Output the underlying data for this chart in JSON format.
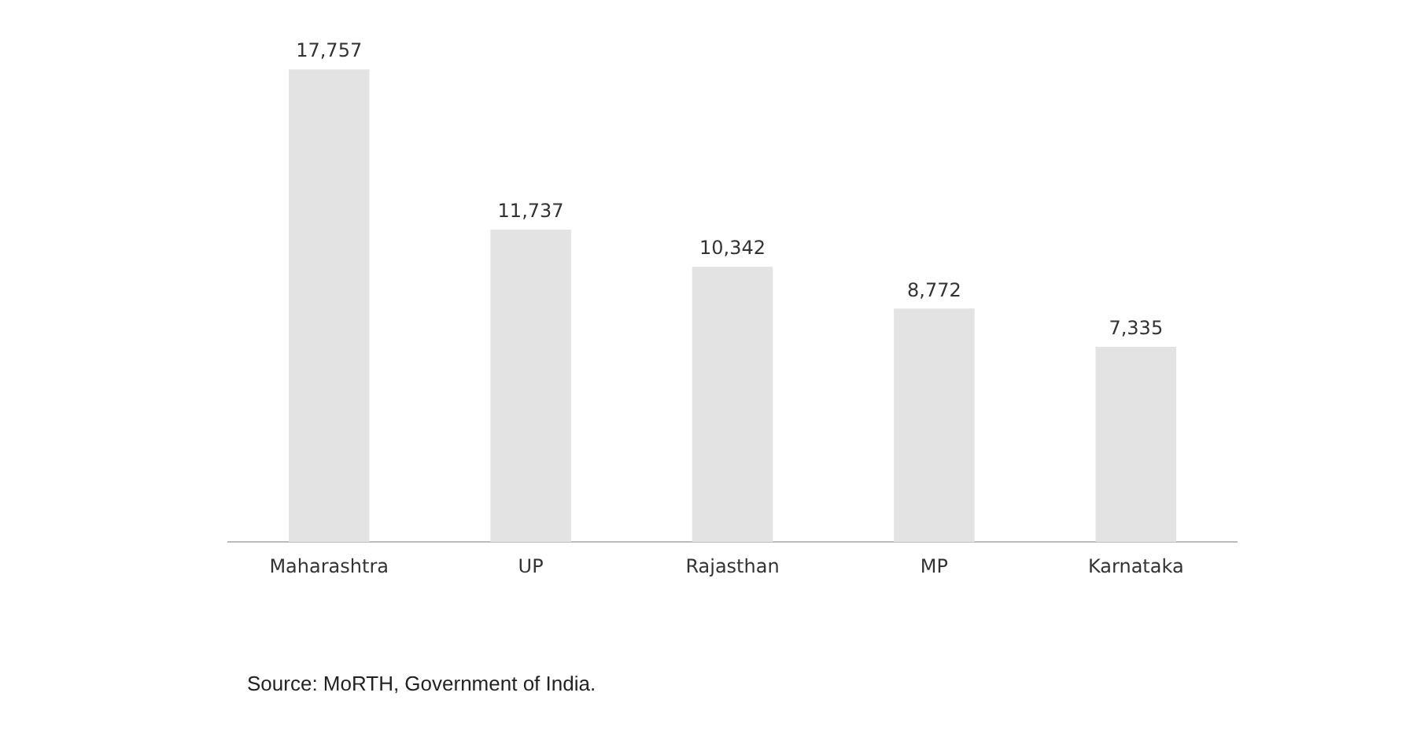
{
  "chart_data": {
    "type": "bar",
    "categories": [
      "Maharashtra",
      "UP",
      "Rajasthan",
      "MP",
      "Karnataka"
    ],
    "values": [
      17757,
      11737,
      10342,
      8772,
      7335
    ],
    "color": "#e3e3e3",
    "data_labels": true,
    "value_labels": [
      "17,757",
      "11,737",
      "10,342",
      "8,772",
      "7,335"
    ],
    "grid": false,
    "legend": false,
    "tick_labels": "x",
    "annotations": [
      "Source: MoRTH, Government of India."
    ]
  }
}
